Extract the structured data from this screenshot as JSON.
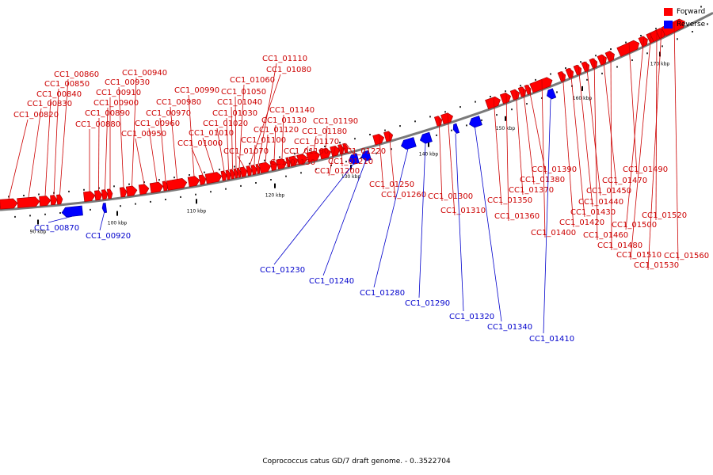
{
  "caption": "Coprococcus catus GD/7 draft genome. - 0..3522704",
  "legend": {
    "forward": {
      "label": "Forward",
      "color": "#ff0000"
    },
    "reverse": {
      "label": "Reverse",
      "color": "#0000ff"
    }
  },
  "colors": {
    "axis": "#7a7a7a",
    "forward_label": "#cc0000",
    "reverse_label": "#0000cc"
  },
  "scale_ticks": [
    "90 kbp",
    "100 kbp",
    "110 kbp",
    "120 kbp",
    "130 kbp",
    "140 kbp",
    "150 kbp",
    "160 kbp",
    "170 kbp"
  ],
  "genes": [
    {
      "name": "CC1_00820",
      "strand": "forward"
    },
    {
      "name": "CC1_00830",
      "strand": "forward"
    },
    {
      "name": "CC1_00840",
      "strand": "forward"
    },
    {
      "name": "CC1_00850",
      "strand": "forward"
    },
    {
      "name": "CC1_00860",
      "strand": "forward"
    },
    {
      "name": "CC1_00870",
      "strand": "reverse"
    },
    {
      "name": "CC1_00880",
      "strand": "forward"
    },
    {
      "name": "CC1_00890",
      "strand": "forward"
    },
    {
      "name": "CC1_00900",
      "strand": "forward"
    },
    {
      "name": "CC1_00910",
      "strand": "forward"
    },
    {
      "name": "CC1_00920",
      "strand": "reverse"
    },
    {
      "name": "CC1_00930",
      "strand": "forward"
    },
    {
      "name": "CC1_00940",
      "strand": "forward"
    },
    {
      "name": "CC1_00950",
      "strand": "forward"
    },
    {
      "name": "CC1_00960",
      "strand": "forward"
    },
    {
      "name": "CC1_00970",
      "strand": "forward"
    },
    {
      "name": "CC1_00980",
      "strand": "forward"
    },
    {
      "name": "CC1_00990",
      "strand": "forward"
    },
    {
      "name": "CC1_01000",
      "strand": "forward"
    },
    {
      "name": "CC1_01010",
      "strand": "forward"
    },
    {
      "name": "CC1_01020",
      "strand": "forward"
    },
    {
      "name": "CC1_01030",
      "strand": "forward"
    },
    {
      "name": "CC1_01040",
      "strand": "forward"
    },
    {
      "name": "CC1_01050",
      "strand": "forward"
    },
    {
      "name": "CC1_01060",
      "strand": "forward"
    },
    {
      "name": "CC1_01070",
      "strand": "forward"
    },
    {
      "name": "CC1_01080",
      "strand": "forward"
    },
    {
      "name": "CC1_01100",
      "strand": "forward"
    },
    {
      "name": "CC1_01110",
      "strand": "forward"
    },
    {
      "name": "CC1_01120",
      "strand": "forward"
    },
    {
      "name": "CC1_01130",
      "strand": "forward"
    },
    {
      "name": "CC1_01140",
      "strand": "forward"
    },
    {
      "name": "CC1_01150",
      "strand": "forward"
    },
    {
      "name": "CC1_01160",
      "strand": "forward"
    },
    {
      "name": "CC1_01170",
      "strand": "forward"
    },
    {
      "name": "CC1_01180",
      "strand": "forward"
    },
    {
      "name": "CC1_01190",
      "strand": "forward"
    },
    {
      "name": "CC1_01200",
      "strand": "forward"
    },
    {
      "name": "CC1_01210",
      "strand": "forward"
    },
    {
      "name": "CC1_01220",
      "strand": "forward"
    },
    {
      "name": "CC1_01230",
      "strand": "reverse"
    },
    {
      "name": "CC1_01240",
      "strand": "reverse"
    },
    {
      "name": "CC1_01250",
      "strand": "forward"
    },
    {
      "name": "CC1_01260",
      "strand": "forward"
    },
    {
      "name": "CC1_01280",
      "strand": "reverse"
    },
    {
      "name": "CC1_01290",
      "strand": "reverse"
    },
    {
      "name": "CC1_01300",
      "strand": "forward"
    },
    {
      "name": "CC1_01310",
      "strand": "forward"
    },
    {
      "name": "CC1_01320",
      "strand": "reverse"
    },
    {
      "name": "CC1_01340",
      "strand": "reverse"
    },
    {
      "name": "CC1_01350",
      "strand": "forward"
    },
    {
      "name": "CC1_01360",
      "strand": "forward"
    },
    {
      "name": "CC1_01370",
      "strand": "forward"
    },
    {
      "name": "CC1_01380",
      "strand": "forward"
    },
    {
      "name": "CC1_01390",
      "strand": "forward"
    },
    {
      "name": "CC1_01400",
      "strand": "forward"
    },
    {
      "name": "CC1_01410",
      "strand": "reverse"
    },
    {
      "name": "CC1_01420",
      "strand": "forward"
    },
    {
      "name": "CC1_01430",
      "strand": "forward"
    },
    {
      "name": "CC1_01440",
      "strand": "forward"
    },
    {
      "name": "CC1_01450",
      "strand": "forward"
    },
    {
      "name": "CC1_01460",
      "strand": "forward"
    },
    {
      "name": "CC1_01470",
      "strand": "forward"
    },
    {
      "name": "CC1_01480",
      "strand": "forward"
    },
    {
      "name": "CC1_01490",
      "strand": "forward"
    },
    {
      "name": "CC1_01500",
      "strand": "forward"
    },
    {
      "name": "CC1_01510",
      "strand": "forward"
    },
    {
      "name": "CC1_01520",
      "strand": "forward"
    },
    {
      "name": "CC1_01530",
      "strand": "forward"
    },
    {
      "name": "CC1_01560",
      "strand": "forward"
    }
  ]
}
